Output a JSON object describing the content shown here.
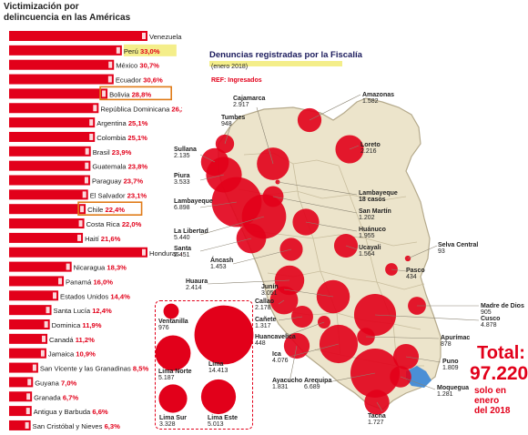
{
  "left_chart": {
    "title_lines": [
      "Victimización por",
      "delincuencia en las Américas"
    ],
    "bars": [
      {
        "label": "Venezuela",
        "value": "40,5%",
        "v": 40.5,
        "hl": "none"
      },
      {
        "label": "Perú",
        "value": "33,0%",
        "v": 33.0,
        "hl": "yellow"
      },
      {
        "label": "México",
        "value": "30,7%",
        "v": 30.7,
        "hl": "none"
      },
      {
        "label": "Ecuador",
        "value": "30,6%",
        "v": 30.6,
        "hl": "none"
      },
      {
        "label": "Bolivia",
        "value": "28,8%",
        "v": 28.8,
        "hl": "box"
      },
      {
        "label": "República Dominicana",
        "value": "26,2%",
        "v": 26.2,
        "hl": "none"
      },
      {
        "label": "Argentina",
        "value": "25,1%",
        "v": 25.1,
        "hl": "none"
      },
      {
        "label": "Colombia",
        "value": "25,1%",
        "v": 25.1,
        "hl": "none"
      },
      {
        "label": "Brasil",
        "value": "23,9%",
        "v": 23.9,
        "hl": "none"
      },
      {
        "label": "Guatemala",
        "value": "23,8%",
        "v": 23.8,
        "hl": "none"
      },
      {
        "label": "Paraguay",
        "value": "23,7%",
        "v": 23.7,
        "hl": "none"
      },
      {
        "label": "El Salvador",
        "value": "23,1%",
        "v": 23.1,
        "hl": "none"
      },
      {
        "label": "Chile",
        "value": "22,4%",
        "v": 22.4,
        "hl": "box"
      },
      {
        "label": "Costa Rica",
        "value": "22,0%",
        "v": 22.0,
        "hl": "none"
      },
      {
        "label": "Haití",
        "value": "21,6%",
        "v": 21.6,
        "hl": "none"
      },
      {
        "label": "Honduras",
        "value": "40,5%",
        "v": 40.5,
        "hl": "none"
      },
      {
        "label": "Nicaragua",
        "value": "18,3%",
        "v": 18.3,
        "hl": "none"
      },
      {
        "label": "Panamá",
        "value": "16,0%",
        "v": 16.0,
        "hl": "none"
      },
      {
        "label": "Estados Unidos",
        "value": "14,4%",
        "v": 14.4,
        "hl": "none"
      },
      {
        "label": "Santa Lucía",
        "value": "12,4%",
        "v": 12.4,
        "hl": "none"
      },
      {
        "label": "Dominica",
        "value": "11,9%",
        "v": 11.9,
        "hl": "none"
      },
      {
        "label": "Canadá",
        "value": "11,2%",
        "v": 11.2,
        "hl": "none"
      },
      {
        "label": "Jamaica",
        "value": "10,9%",
        "v": 10.9,
        "hl": "none"
      },
      {
        "label": "San Vicente y las Granadinas",
        "value": "8,5%",
        "v": 8.5,
        "hl": "none"
      },
      {
        "label": "Guyana",
        "value": "7,0%",
        "v": 7.0,
        "hl": "none"
      },
      {
        "label": "Granada",
        "value": "6,7%",
        "v": 6.7,
        "hl": "none"
      },
      {
        "label": "Antigua y Barbuda",
        "value": "6,6%",
        "v": 6.6,
        "hl": "none"
      },
      {
        "label": "San Cristóbal y Nieves",
        "value": "6,3%",
        "v": 6.3,
        "hl": "none"
      }
    ]
  },
  "right_map": {
    "title": "Denuncias registradas por la Fiscalía",
    "subtitle": "(enero 2018)",
    "ref": "REF: Ingresados",
    "regions": [
      {
        "name": "Amazonas",
        "value": "1.582",
        "n": 1582
      },
      {
        "name": "Cajamarca",
        "value": "2.917",
        "n": 2917
      },
      {
        "name": "Tumbes",
        "value": "948",
        "n": 948
      },
      {
        "name": "Loreto",
        "value": "2.216",
        "n": 2216
      },
      {
        "name": "Sullana",
        "value": "2.135",
        "n": 2135
      },
      {
        "name": "Piura",
        "value": "3.533",
        "n": 3533
      },
      {
        "name": "Lambayeque",
        "value": "6.898",
        "n": 6898
      },
      {
        "name": "Lambayeque",
        "value": "18 casos",
        "n": 18
      },
      {
        "name": "San Martín",
        "value": "1.202",
        "n": 1202
      },
      {
        "name": "Huánuco",
        "value": "1.955",
        "n": 1955
      },
      {
        "name": "La Libertad",
        "value": "5.440",
        "n": 5440
      },
      {
        "name": "Ucayali",
        "value": "1.564",
        "n": 1564
      },
      {
        "name": "Santa",
        "value": "2.451",
        "n": 2451
      },
      {
        "name": "Áncash",
        "value": "1.453",
        "n": 1453
      },
      {
        "name": "Selva Central",
        "value": "93",
        "n": 93
      },
      {
        "name": "Pasco",
        "value": "434",
        "n": 434
      },
      {
        "name": "Huaura",
        "value": "2.414",
        "n": 2414
      },
      {
        "name": "Junín",
        "value": "3.051",
        "n": 3051
      },
      {
        "name": "Callao",
        "value": "2.178",
        "n": 2178
      },
      {
        "name": "Cañete",
        "value": "1.317",
        "n": 1317
      },
      {
        "name": "Huancavelica",
        "value": "448",
        "n": 448
      },
      {
        "name": "Ica",
        "value": "4.076",
        "n": 4076
      },
      {
        "name": "Madre de Dios",
        "value": "905",
        "n": 905
      },
      {
        "name": "Cusco",
        "value": "4.878",
        "n": 4878
      },
      {
        "name": "Apurímac",
        "value": "878",
        "n": 878
      },
      {
        "name": "Puno",
        "value": "1.809",
        "n": 1809
      },
      {
        "name": "Ayacucho",
        "value": "1.831",
        "n": 1831
      },
      {
        "name": "Arequipa",
        "value": "6.689",
        "n": 6689
      },
      {
        "name": "Moquegua",
        "value": "1.281",
        "n": 1281
      },
      {
        "name": "Tacna",
        "value": "1.727",
        "n": 1727
      }
    ],
    "lima": [
      {
        "name": "Ventanilla",
        "value": "976",
        "n": 976
      },
      {
        "name": "Lima",
        "value": "14.413",
        "n": 14413
      },
      {
        "name": "Lima Norte",
        "value": "5.187",
        "n": 5187
      },
      {
        "name": "Lima Sur",
        "value": "3.328",
        "n": 3328
      },
      {
        "name": "Lima Este",
        "value": "5.013",
        "n": 5013
      }
    ],
    "total_label": "Total:",
    "total_value": "97.220",
    "total_note_lines": [
      "solo en",
      "enero",
      "del 2018"
    ]
  },
  "colors": {
    "bar": "#e2001a",
    "dot": "#e2001a",
    "map_fill": "#ece4cb",
    "map_stroke": "#b5aa8c",
    "highlight_yellow": "#f4ee8a",
    "box_outline": "#e07b18",
    "lake": "#4a8fd6"
  }
}
